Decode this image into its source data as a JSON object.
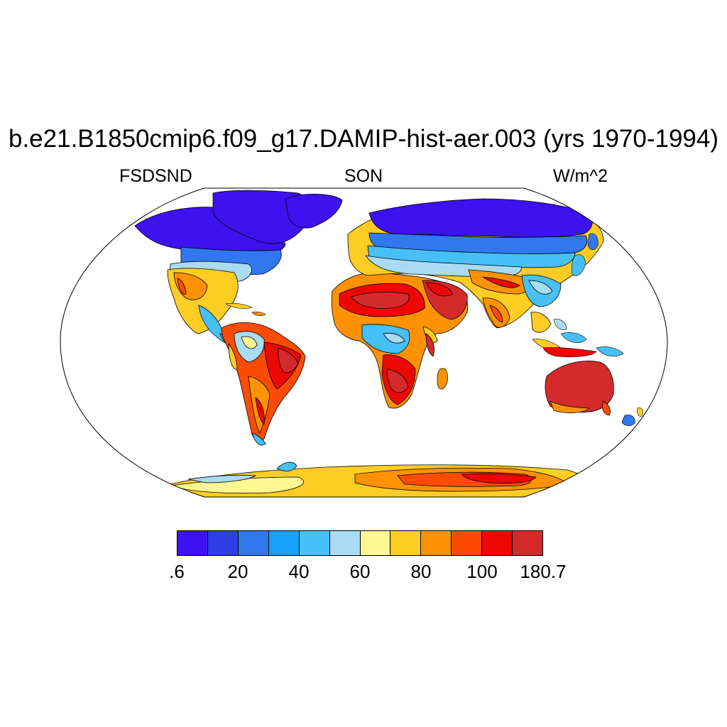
{
  "title": "b.e21.B1850cmip6.f09_g17.DAMIP-hist-aer.003 (yrs 1970-1994)",
  "left_label": "FSDSND",
  "center_label": "SON",
  "right_label": "W/m^2",
  "colorbar": {
    "colors": [
      "#3c12f0",
      "#2b3ee8",
      "#3178ef",
      "#16a1fb",
      "#46c0f7",
      "#a9dcf2",
      "#fef891",
      "#fecd24",
      "#fe9202",
      "#fe4b02",
      "#ee0603",
      "#d42a2b"
    ],
    "labels": [
      {
        "text": ".6",
        "boundary": 0
      },
      {
        "text": "20",
        "boundary": 2
      },
      {
        "text": "40",
        "boundary": 4
      },
      {
        "text": "60",
        "boundary": 6
      },
      {
        "text": "80",
        "boundary": 8
      },
      {
        "text": "100",
        "boundary": 10
      },
      {
        "text": "180.7",
        "boundary": 12
      }
    ]
  }
}
